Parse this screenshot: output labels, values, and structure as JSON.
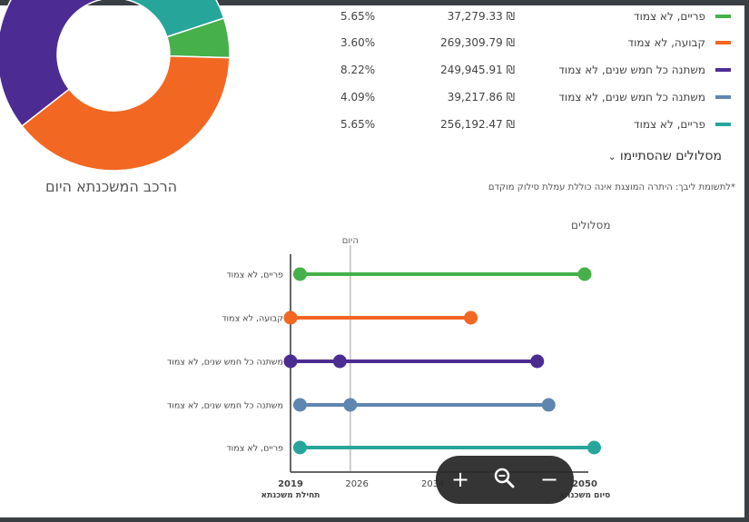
{
  "colors": {
    "green": "#46b04a",
    "orange": "#f26722",
    "purple": "#4c2c92",
    "steel": "#5f86b0",
    "teal": "#26a69a",
    "today_line": "#cccccc",
    "axis": "#666666"
  },
  "donut": {
    "title": "הרכב המשכנתא היום",
    "slices": [
      {
        "color": "teal",
        "percent": 20.5
      },
      {
        "color": "green",
        "percent": 5.5
      },
      {
        "color": "orange",
        "percent": 39.0
      },
      {
        "color": "purple",
        "percent": 35.0
      }
    ]
  },
  "allocation": {
    "rows": [
      {
        "name": "פריים, לא צמוד",
        "amount": "37,279.33 ₪",
        "percent": "5.65%",
        "color": "green"
      },
      {
        "name": "קבועה, לא צמוד",
        "amount": "269,309.79 ₪",
        "percent": "3.60%",
        "color": "orange"
      },
      {
        "name": "משתנה כל חמש שנים, לא צמוד",
        "amount": "249,945.91 ₪",
        "percent": "8.22%",
        "color": "purple"
      },
      {
        "name": "משתנה כל חמש שנים, לא צמוד",
        "amount": "39,217.86 ₪",
        "percent": "4.09%",
        "color": "steel"
      },
      {
        "name": "פריים, לא צמוד",
        "amount": "256,192.47 ₪",
        "percent": "5.65%",
        "color": "teal"
      }
    ]
  },
  "tracks_toggle": {
    "label": "מסלולים שהסתיימו",
    "chevron": "chevron-down-icon"
  },
  "disclaimer": "*לתשומת ליבך: היתרה המוצגת אינה כוללת עמלת סילוק מוקדם",
  "chart_label": "מסלולים",
  "chart_data": {
    "type": "timeline",
    "today_label": "היום",
    "today_value": 2025.3,
    "x_ticks": [
      {
        "value": 2019,
        "label": "2019",
        "sublabel": "תחילת משכנתא",
        "bold": true
      },
      {
        "value": 2026,
        "label": "2026",
        "sublabel": "",
        "bold": false
      },
      {
        "value": 2034,
        "label": "2034",
        "sublabel": "",
        "bold": false
      },
      {
        "value": 2050,
        "label": "2050",
        "sublabel": "סיום משכנתא",
        "bold": true
      }
    ],
    "xlim": [
      2019,
      2050
    ],
    "tracks": [
      {
        "label": "פריים, לא צמוד",
        "color": "green",
        "start": 2020,
        "mid": null,
        "end": 2050
      },
      {
        "label": "קבועה, לא צמוד",
        "color": "orange",
        "start": 2019,
        "mid": null,
        "end": 2038
      },
      {
        "label": "משתנה כל חמש שנים, לא צמוד",
        "color": "purple",
        "start": 2019,
        "mid": 2024.2,
        "end": 2045
      },
      {
        "label": "משתנה כל חמש שנים, לא צמוד",
        "color": "steel",
        "start": 2020,
        "mid": 2025.3,
        "end": 2046.2
      },
      {
        "label": "פריים, לא צמוד",
        "color": "teal",
        "start": 2020,
        "mid": null,
        "end": 2051
      }
    ]
  },
  "zoom": {
    "in_label": "+",
    "out_label": "−",
    "magnifier_icon": "zoom-icon"
  }
}
